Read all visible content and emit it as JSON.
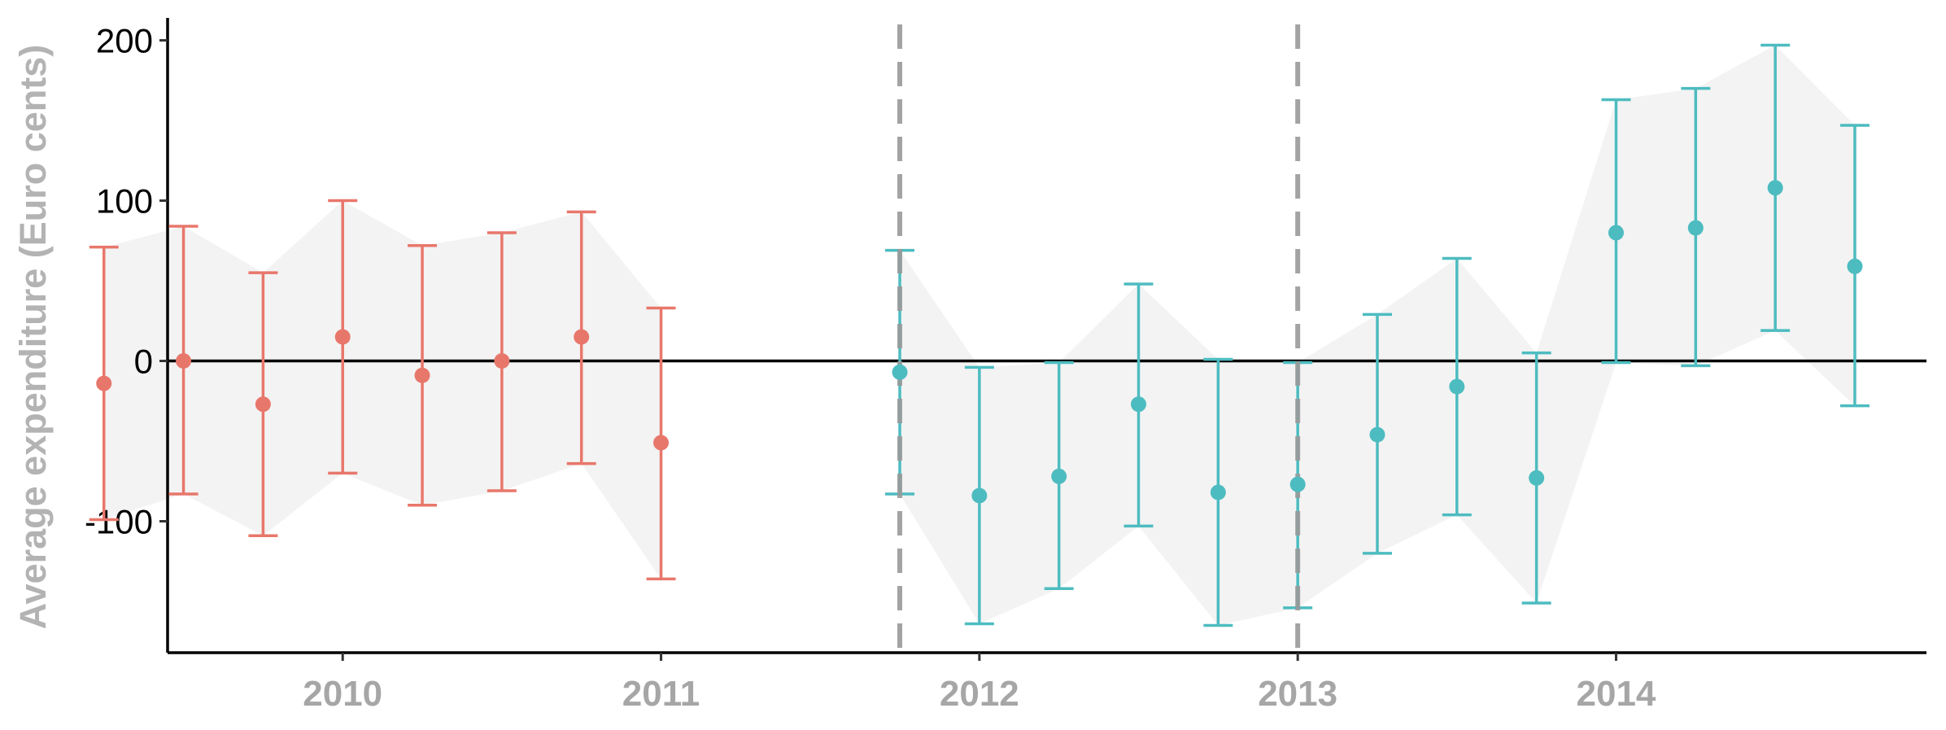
{
  "chart_data": {
    "type": "scatter",
    "title": "",
    "xlabel": "",
    "ylabel": "Average expenditure (Euro cents)",
    "xlim": [
      2009.45,
      2014.975
    ],
    "ylim": [
      -182,
      214
    ],
    "yticks": [
      200,
      100,
      0,
      -100
    ],
    "ytick_labels": [
      "200",
      "100",
      "0",
      "-100"
    ],
    "xticks": [
      2010,
      2011,
      2012,
      2013,
      2014
    ],
    "xtick_labels": [
      "2010",
      "2011",
      "2012",
      "2013",
      "2014"
    ],
    "hline": 0,
    "vlines": [
      2011.75,
      2013.0
    ],
    "grid": false,
    "legend": "none",
    "ribbon": true,
    "colors": {
      "before": "#e8776b",
      "after": "#4dbcc0",
      "ribbon": "#ececec",
      "vline": "#999999",
      "axis": "#000000"
    },
    "series": [
      {
        "color_key": "before",
        "x": [
          2009.25,
          2009.5,
          2009.75,
          2010.0,
          2010.25,
          2010.5,
          2010.75,
          2011.0
        ],
        "y": [
          -14,
          0,
          -27,
          15,
          -9,
          0,
          15,
          -51
        ],
        "lower": [
          -99,
          -83,
          -109,
          -70,
          -90,
          -81,
          -64,
          -136
        ],
        "upper": [
          71,
          84,
          55,
          100,
          72,
          80,
          93,
          33
        ]
      },
      {
        "color_key": "after",
        "x": [
          2011.75,
          2012.0,
          2012.25,
          2012.5,
          2012.75,
          2013.0,
          2013.25,
          2013.5,
          2013.75,
          2014.0,
          2014.25,
          2014.5,
          2014.75
        ],
        "y": [
          -7,
          -84,
          -72,
          -27,
          -82,
          -77,
          -46,
          -16,
          -73,
          80,
          83,
          108,
          59
        ],
        "lower": [
          -83,
          -164,
          -142,
          -103,
          -165,
          -154,
          -120,
          -96,
          -151,
          -1,
          -3,
          19,
          -28
        ],
        "upper": [
          69,
          -4,
          -1,
          48,
          1,
          -1,
          29,
          64,
          5,
          163,
          170,
          197,
          147
        ]
      }
    ]
  }
}
